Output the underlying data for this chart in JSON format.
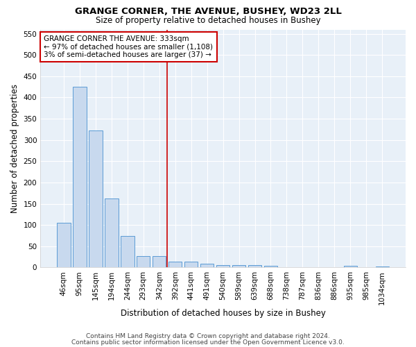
{
  "title": "GRANGE CORNER, THE AVENUE, BUSHEY, WD23 2LL",
  "subtitle": "Size of property relative to detached houses in Bushey",
  "xlabel": "Distribution of detached houses by size in Bushey",
  "ylabel": "Number of detached properties",
  "bar_labels": [
    "46sqm",
    "95sqm",
    "145sqm",
    "194sqm",
    "244sqm",
    "293sqm",
    "342sqm",
    "392sqm",
    "441sqm",
    "491sqm",
    "540sqm",
    "589sqm",
    "639sqm",
    "688sqm",
    "738sqm",
    "787sqm",
    "836sqm",
    "886sqm",
    "935sqm",
    "985sqm",
    "1034sqm"
  ],
  "bar_values": [
    105,
    425,
    322,
    163,
    75,
    27,
    27,
    13,
    13,
    9,
    6,
    5,
    5,
    4,
    0,
    0,
    0,
    0,
    4,
    0,
    3
  ],
  "bar_color": "#c8d9ee",
  "bar_edge_color": "#5b9bd5",
  "background_color": "#e8f0f8",
  "grid_color": "#ffffff",
  "red_line_x": 6.5,
  "annotation_text": "GRANGE CORNER THE AVENUE: 333sqm\n← 97% of detached houses are smaller (1,108)\n3% of semi-detached houses are larger (37) →",
  "annotation_box_color": "#ffffff",
  "annotation_border_color": "#cc0000",
  "red_line_color": "#cc0000",
  "ylim": [
    0,
    560
  ],
  "yticks": [
    0,
    50,
    100,
    150,
    200,
    250,
    300,
    350,
    400,
    450,
    500,
    550
  ],
  "footer_line1": "Contains HM Land Registry data © Crown copyright and database right 2024.",
  "footer_line2": "Contains public sector information licensed under the Open Government Licence v3.0.",
  "title_fontsize": 9.5,
  "subtitle_fontsize": 8.5,
  "xlabel_fontsize": 8.5,
  "ylabel_fontsize": 8.5,
  "tick_fontsize": 7.5,
  "annotation_fontsize": 7.5,
  "footer_fontsize": 6.5
}
